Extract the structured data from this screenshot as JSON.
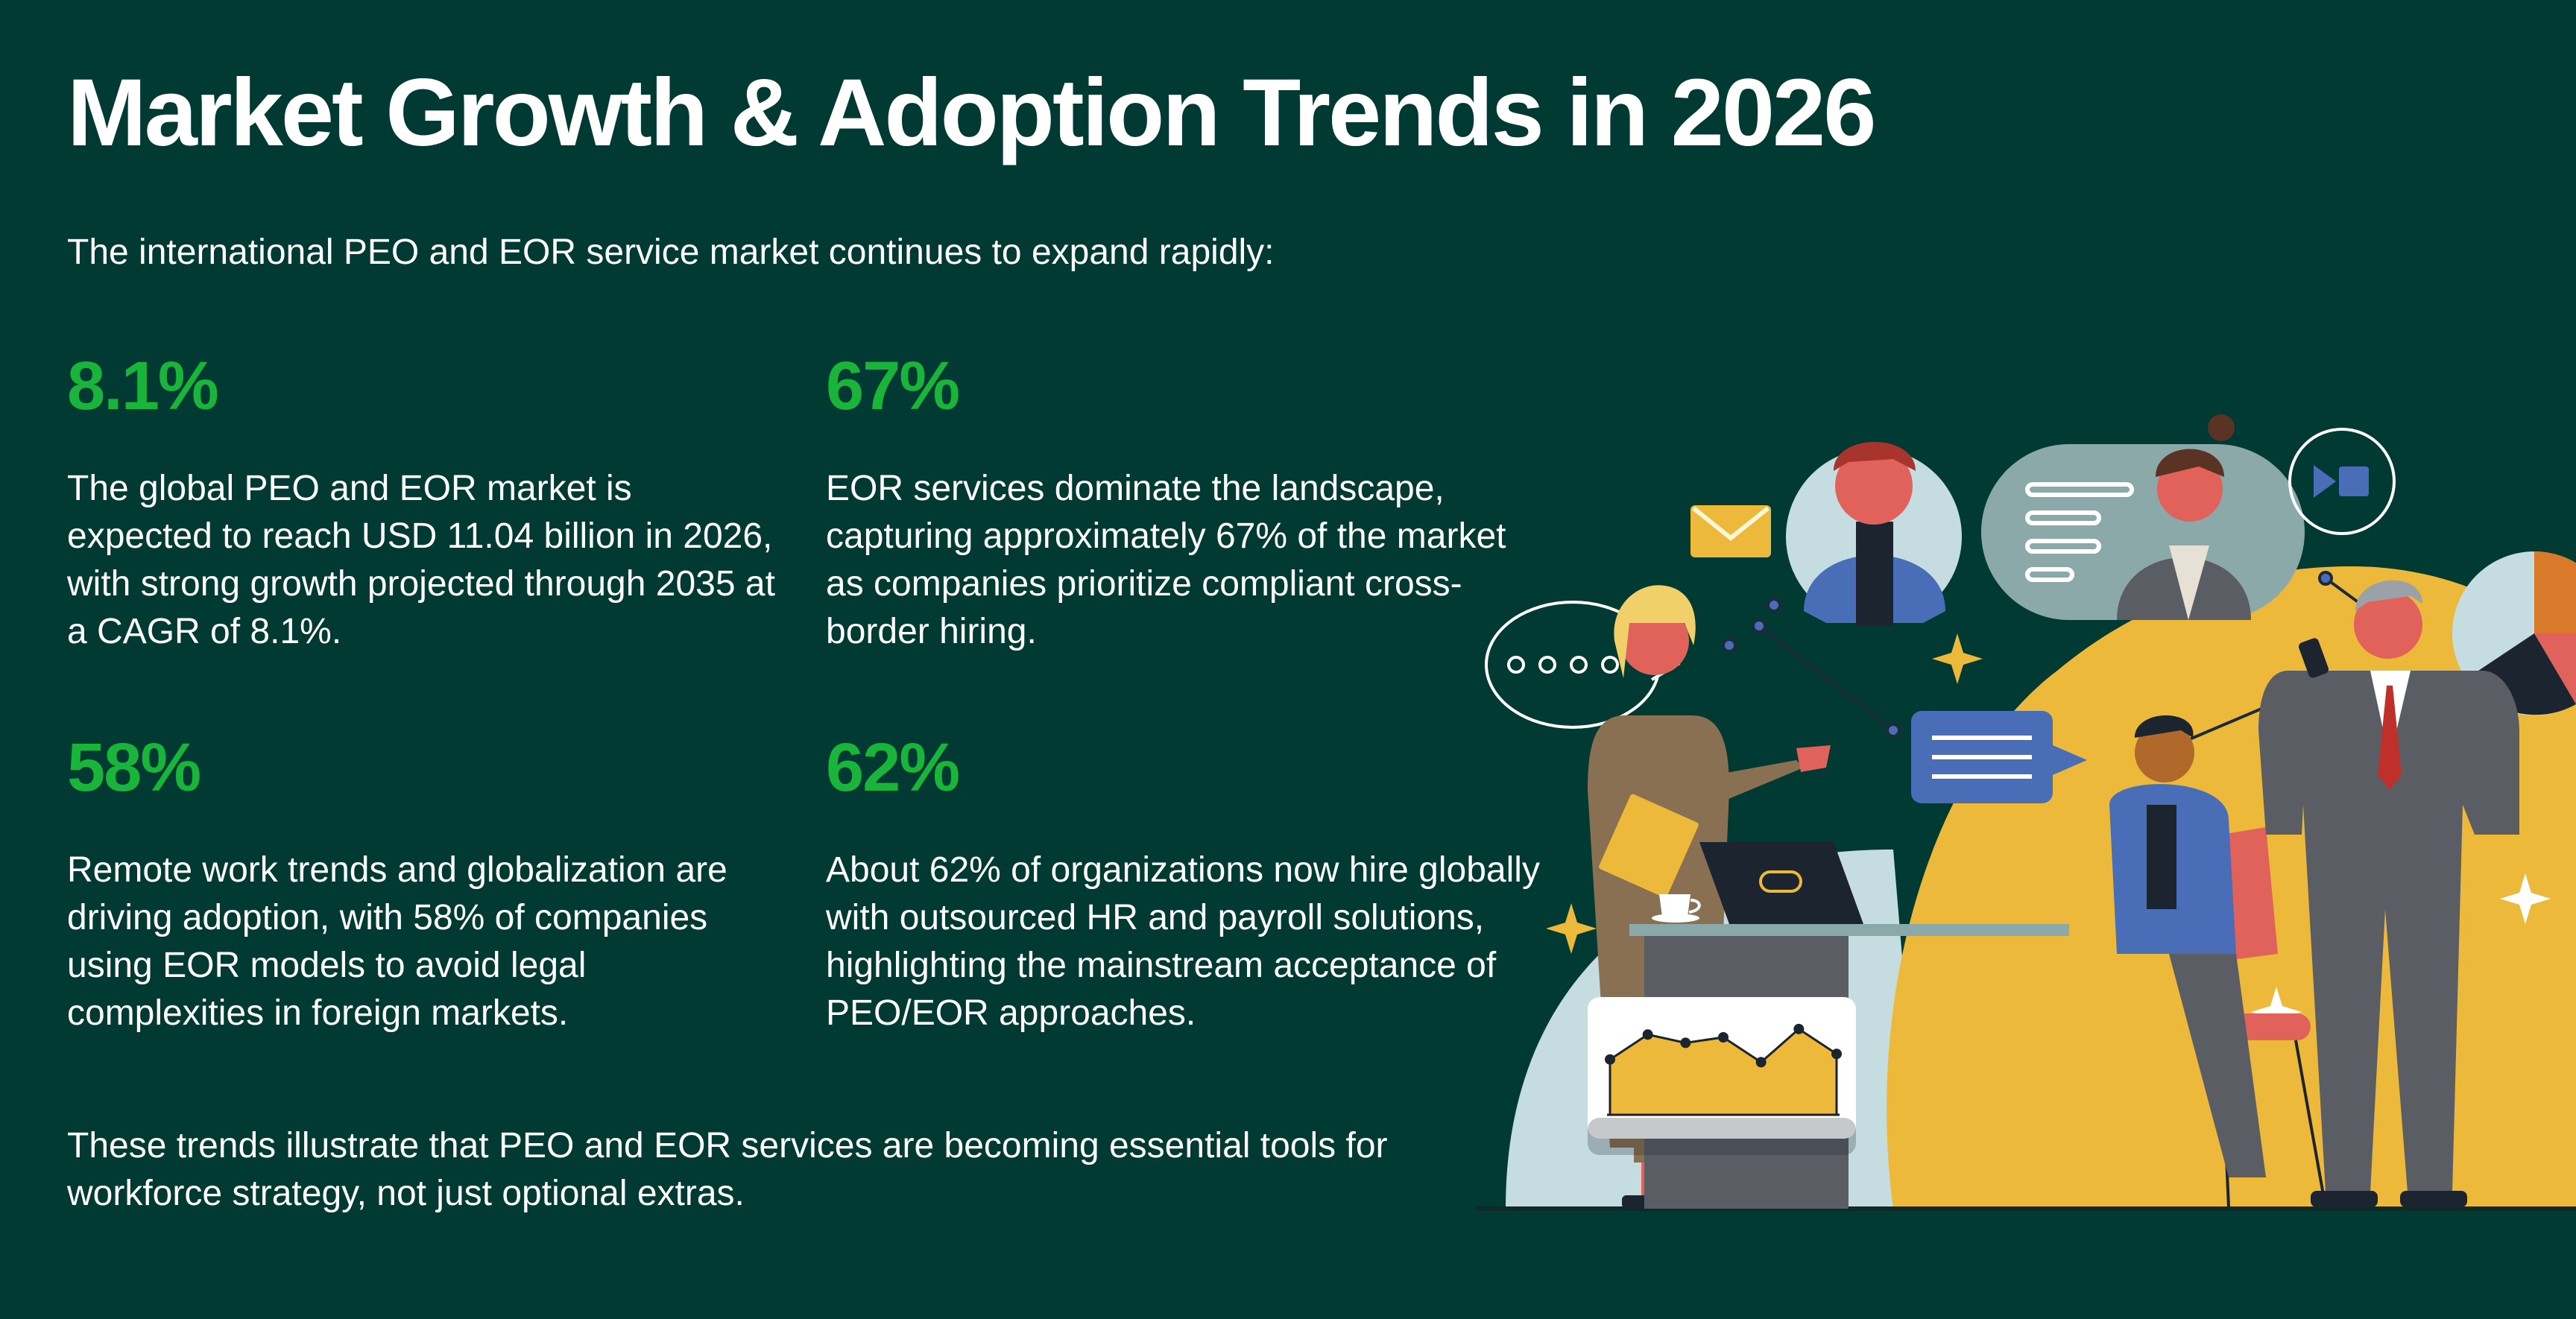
{
  "title": "Market Growth & Adoption Trends in 2026",
  "intro": "The international PEO and EOR service market continues to expand rapidly:",
  "stats": [
    {
      "value": "8.1%",
      "text": "The global PEO and EOR market is expected to reach USD 11.04 billion in 2026, with strong growth projected through 2035 at a CAGR of 8.1%."
    },
    {
      "value": "67%",
      "text": "EOR services dominate the landscape, capturing approximately 67% of the market as companies prioritize compliant cross-border hiring."
    },
    {
      "value": "58%",
      "text": "Remote work trends and globalization are driving adoption, with 58% of companies using EOR models to avoid legal complexities in foreign markets."
    },
    {
      "value": "62%",
      "text": "About 62% of organizations now hire globally with outsourced HR and payroll solutions, highlighting the mainstream acceptance of PEO/EOR approaches."
    }
  ],
  "outro": "These trends illustrate that PEO and EOR services are becoming essential tools for workforce strategy, not just optional extras.",
  "colors": {
    "background": "#013a33",
    "accent_green": "#19b43a",
    "yellow": "#ecb93a",
    "light_blue": "#c5dde0",
    "blue": "#4a6db8",
    "coral": "#e0625a",
    "gray": "#5a5e64",
    "brown": "#8a7052"
  },
  "illustration": {
    "icons": [
      "envelope-icon",
      "chat-bubble-icon",
      "video-call-icon",
      "pie-chart-icon",
      "line-chart-icon",
      "coffee-cup-icon",
      "laptop-icon",
      "sparkle-icon"
    ],
    "line_chart_points": [
      40,
      58,
      52,
      56,
      38,
      62,
      44
    ]
  }
}
